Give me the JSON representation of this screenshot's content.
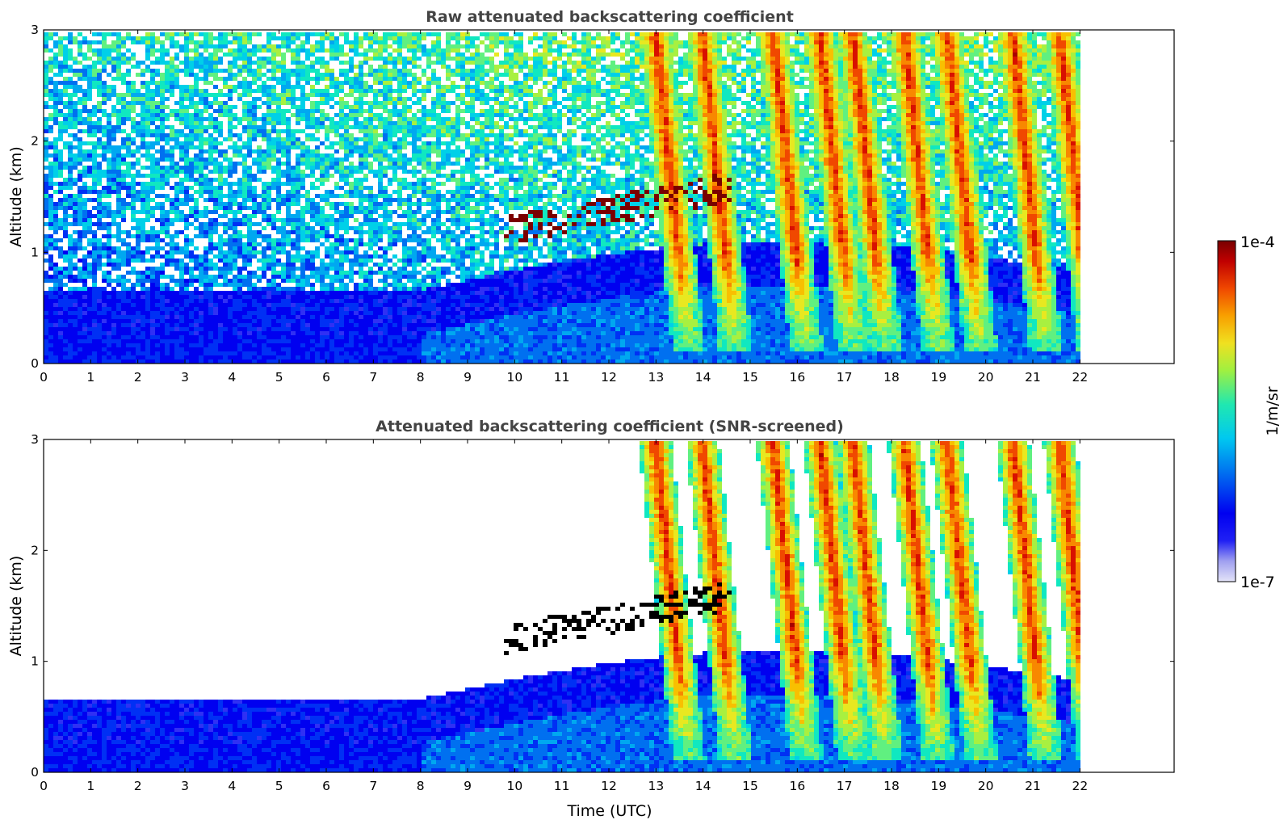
{
  "chart_data": [
    {
      "type": "heatmap",
      "title": "Raw attenuated backscattering coefficient",
      "xlabel": "",
      "ylabel": "Altitude (km)",
      "xlim": [
        0,
        24
      ],
      "ylim": [
        0,
        3
      ],
      "x_ticks": [
        0,
        1,
        2,
        3,
        4,
        5,
        6,
        7,
        8,
        9,
        10,
        11,
        12,
        13,
        14,
        15,
        16,
        17,
        18,
        19,
        20,
        21,
        22
      ],
      "y_ticks": [
        0,
        1,
        2,
        3
      ],
      "data_end_hour": 22,
      "screened": false,
      "features": {
        "boundary_layer_top_km": 0.25,
        "aerosol_layer_km": [
          0.0,
          0.8
        ],
        "thin_cloud_band": {
          "start_hour": 9.8,
          "end_hour": 14.6,
          "altitude_km": [
            1.2,
            1.6
          ]
        },
        "precipitation_streaks_hours": [
          13,
          14,
          15.5,
          16.5,
          17.2,
          18.3,
          19.2,
          20.6,
          21.6
        ]
      }
    },
    {
      "type": "heatmap",
      "title": "Attenuated backscattering coefficient (SNR-screened)",
      "xlabel": "Time (UTC)",
      "ylabel": "Altitude (km)",
      "xlim": [
        0,
        24
      ],
      "ylim": [
        0,
        3
      ],
      "x_ticks": [
        0,
        1,
        2,
        3,
        4,
        5,
        6,
        7,
        8,
        9,
        10,
        11,
        12,
        13,
        14,
        15,
        16,
        17,
        18,
        19,
        20,
        21,
        22
      ],
      "y_ticks": [
        0,
        1,
        2,
        3
      ],
      "data_end_hour": 22,
      "screened": true
    }
  ],
  "colorbar": {
    "label": "1/m/sr",
    "max_label": "1e-4",
    "min_label": "1e-7",
    "colors": [
      "#e0e0f8",
      "#b8b8f4",
      "#9090f0",
      "#3030f4",
      "#0000f0",
      "#0030f4",
      "#0070f0",
      "#00a8f0",
      "#00d0e8",
      "#10e8c0",
      "#60f080",
      "#a8f040",
      "#e8e820",
      "#f8c000",
      "#f88800",
      "#f04800",
      "#d81000",
      "#a80000",
      "#7a0000"
    ],
    "log_range": [
      -7,
      -4
    ]
  }
}
